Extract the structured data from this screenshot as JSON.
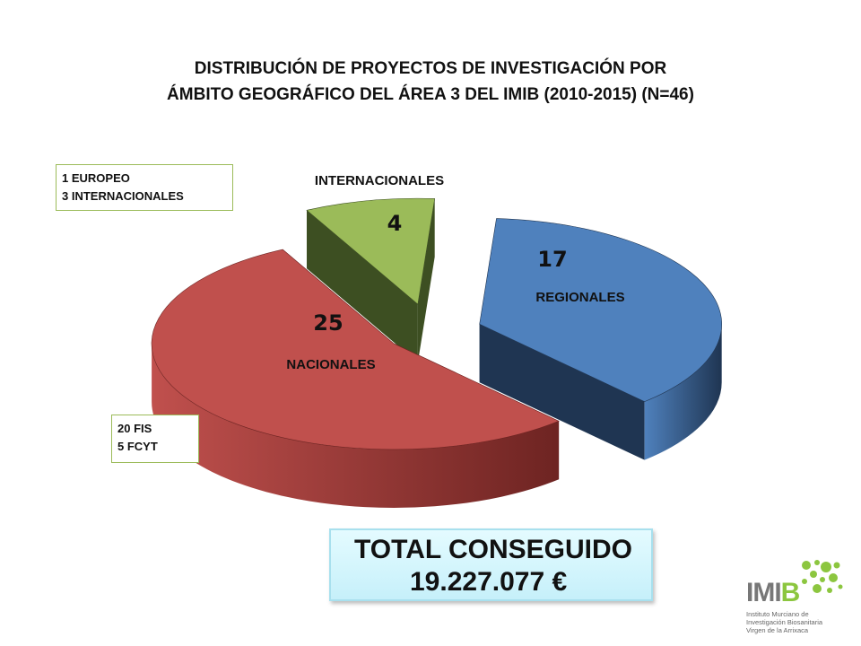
{
  "title_lines": [
    "DISTRIBUCIÓN DE PROYECTOS DE INVESTIGACIÓN POR",
    "ÁMBITO GEOGRÁFICO DEL ÁREA 3 DEL IMIB (2010-2015) (N=46)"
  ],
  "chart_data": {
    "type": "pie",
    "title": "DISTRIBUCIÓN DE PROYECTOS DE INVESTIGACIÓN POR ÁMBITO GEOGRÁFICO DEL ÁREA 3 DEL IMIB (2010-2015) (N=46)",
    "style": "3d-exploded",
    "slices": [
      {
        "label": "REGIONALES",
        "value": 17,
        "color": "#4f81bd",
        "side_color": "#1f3552"
      },
      {
        "label": "NACIONALES",
        "value": 25,
        "color": "#c0504d",
        "side_color": "#6e2422"
      },
      {
        "label": "INTERNACIONALES",
        "value": 4,
        "color": "#9bbb59",
        "side_color": "#3d4f22"
      }
    ]
  },
  "notes": {
    "internacionales": [
      "1 EUROPEO",
      "3 INTERNACIONALES"
    ],
    "nacionales": [
      "20 FIS",
      "5 FCYT"
    ]
  },
  "total": {
    "line1": "TOTAL CONSEGUIDO",
    "line2": "19.227.077 €"
  },
  "logo": {
    "word_main": "IMI",
    "word_accent": "B",
    "sub_lines": [
      "Instituto Murciano de",
      "Investigación Biosanitaria",
      "Virgen de la Arrixaca"
    ],
    "accent_color": "#8cc63f"
  }
}
